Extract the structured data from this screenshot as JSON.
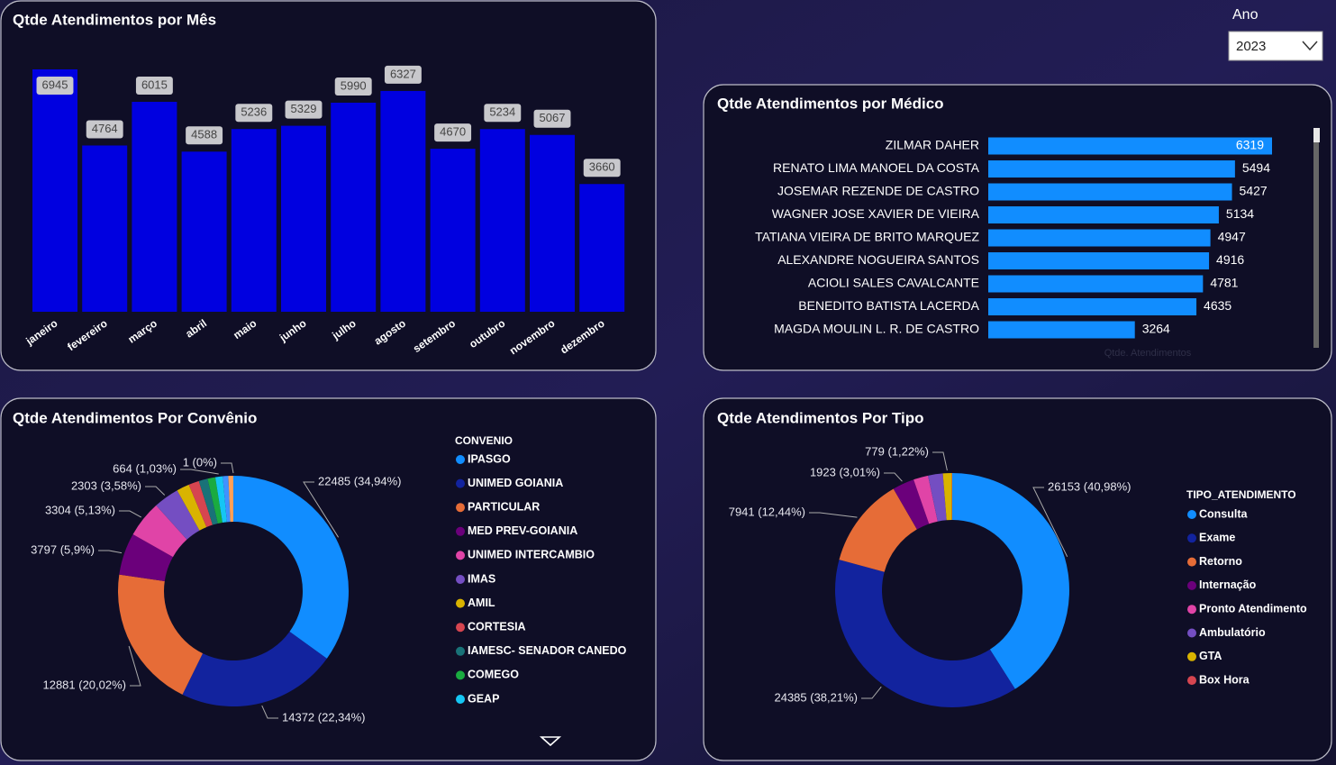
{
  "slicer": {
    "label": "Ano",
    "value": "2023"
  },
  "chart_data": [
    {
      "type": "bar",
      "title": "Qtde Atendimentos por Mês",
      "categories": [
        "janeiro",
        "fevereiro",
        "março",
        "abril",
        "maio",
        "junho",
        "julho",
        "agosto",
        "setembro",
        "outubro",
        "novembro",
        "dezembro"
      ],
      "values": [
        6945,
        4764,
        6015,
        4588,
        5236,
        5329,
        5990,
        6327,
        4670,
        5234,
        5067,
        3660
      ],
      "color": "#0000E0"
    },
    {
      "type": "hbar",
      "title": "Qtde Atendimentos por Médico",
      "categories": [
        "ZILMAR DAHER",
        "RENATO LIMA MANOEL DA COSTA",
        "JOSEMAR REZENDE DE CASTRO",
        "WAGNER JOSE XAVIER DE VIEIRA",
        "TATIANA VIEIRA DE BRITO MARQUEZ",
        "ALEXANDRE NOGUEIRA SANTOS",
        "ACIOLI SALES CAVALCANTE",
        "BENEDITO BATISTA LACERDA",
        "MAGDA MOULIN L. R. DE CASTRO"
      ],
      "values": [
        6319,
        5494,
        5427,
        5134,
        4947,
        4916,
        4781,
        4635,
        3264
      ],
      "color": "#118DFF",
      "x_label": "Qtde. Atendimentos"
    },
    {
      "type": "donut",
      "title": "Qtde Atendimentos Por Convênio",
      "legend_title": "CONVENIO",
      "categories": [
        "IPASGO",
        "UNIMED GOIANIA",
        "PARTICULAR",
        "MED PREV-GOIANIA",
        "UNIMED INTERCAMBIO",
        "IMAS",
        "AMIL",
        "CORTESIA",
        "IAMESC- SENADOR CANEDO",
        "COMEGO",
        "GEAP",
        null,
        null,
        null
      ],
      "values": [
        22485,
        14372,
        12881,
        3797,
        3304,
        2303,
        1150,
        950,
        800,
        700,
        664,
        500,
        446,
        1
      ],
      "value_labels": [
        "22485 (34,94%)",
        "14372 (22,34%)",
        "12881 (20,02%)",
        "3797 (5,9%)",
        "3304 (5,13%)",
        "2303 (3,58%)",
        null,
        null,
        null,
        null,
        "664 (1,03%)",
        null,
        null,
        "1 (0%)"
      ],
      "colors": [
        "#118DFF",
        "#12239E",
        "#E66C37",
        "#6B007B",
        "#E044A7",
        "#744EC2",
        "#D9B300",
        "#D64550",
        "#197278",
        "#1AAB40",
        "#15C6F4",
        "#4092FF",
        "#FFA058",
        "#BE5DC9"
      ]
    },
    {
      "type": "donut",
      "title": "Qtde Atendimentos Por Tipo",
      "legend_title": "TIPO_ATENDIMENTO",
      "categories": [
        "Consulta",
        "Exame",
        "Retorno",
        "Internação",
        "Pronto Atendimento",
        "Ambulatório",
        "GTA",
        "Box Hora"
      ],
      "values": [
        26153,
        24385,
        7941,
        1923,
        1300,
        1300,
        779,
        38
      ],
      "value_labels": [
        "26153 (40,98%)",
        "24385 (38,21%)",
        "7941 (12,44%)",
        "1923 (3,01%)",
        null,
        null,
        "779 (1,22%)",
        null
      ],
      "colors": [
        "#118DFF",
        "#12239E",
        "#E66C37",
        "#6B007B",
        "#E044A7",
        "#744EC2",
        "#D9B300",
        "#D64550"
      ]
    }
  ]
}
